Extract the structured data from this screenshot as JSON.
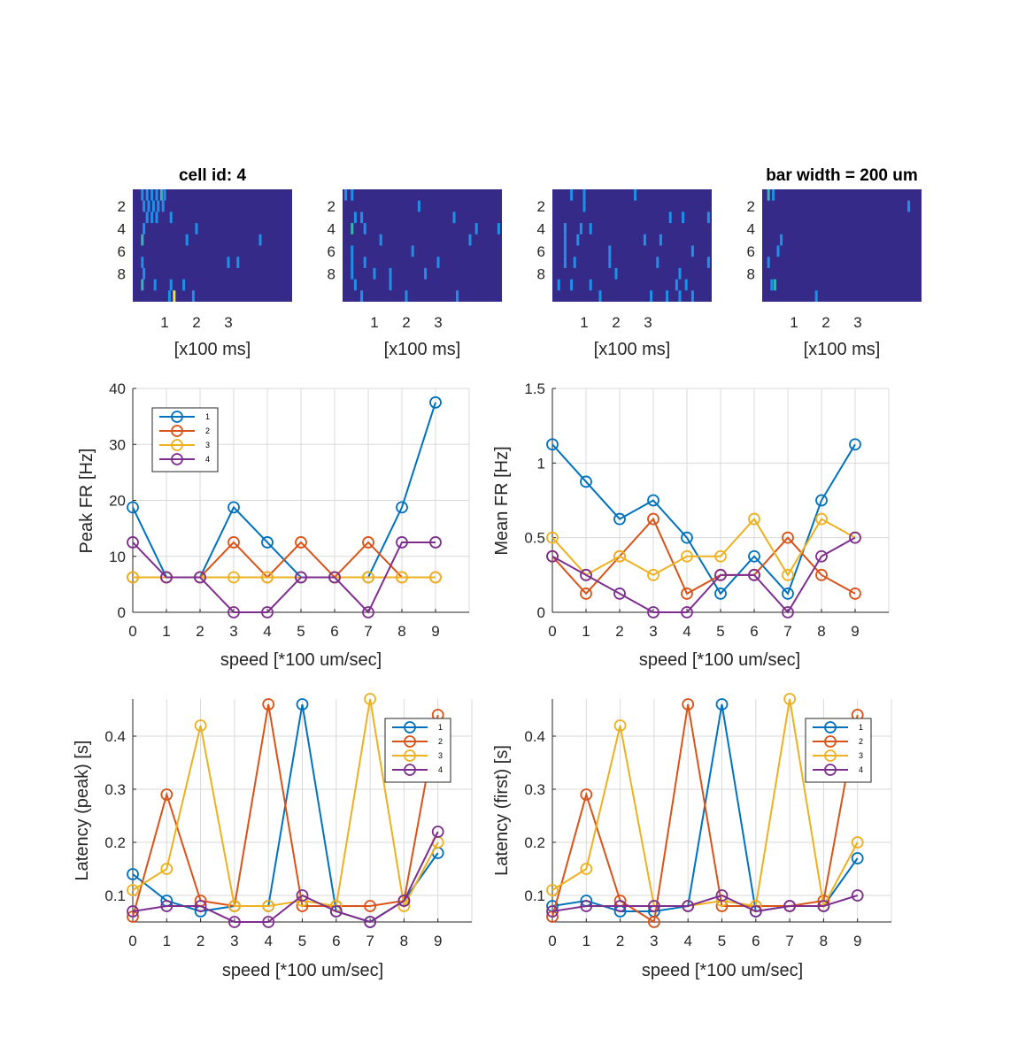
{
  "figure": {
    "raster_title": "cell id: 4",
    "raster_title_right": "bar width = 200 um"
  },
  "colors": {
    "series": [
      "#0072BD",
      "#D95319",
      "#EDB120",
      "#7E2F8E"
    ],
    "raster_background": "#352A87",
    "raster_event": "#1E90E8",
    "raster_event_strong": "#35B8B0",
    "raster_event_max": "#E6E63C",
    "axis": "#262626",
    "grid": "#d9d9d9"
  },
  "rasters": {
    "xlabel": "[x100 ms]",
    "xticks": [
      1,
      2,
      3
    ],
    "yticks": [
      2,
      4,
      6,
      8
    ],
    "xlim": [
      0,
      5
    ],
    "ylim": [
      0.5,
      10.5
    ]
  },
  "chart_data": [
    {
      "type": "heatmap",
      "panel": "raster-1",
      "title": "cell id: 4",
      "xlabel": "[x100 ms]",
      "events": [
        [
          0.3,
          1,
          1
        ],
        [
          0.45,
          1,
          1
        ],
        [
          0.6,
          1,
          1
        ],
        [
          0.75,
          1,
          1
        ],
        [
          0.9,
          1,
          2
        ],
        [
          1.0,
          1,
          1
        ],
        [
          0.35,
          2,
          1
        ],
        [
          0.5,
          2,
          1
        ],
        [
          0.65,
          2,
          1
        ],
        [
          0.8,
          2,
          1
        ],
        [
          0.95,
          2,
          1
        ],
        [
          0.45,
          3,
          1
        ],
        [
          0.6,
          3,
          1
        ],
        [
          0.75,
          3,
          1
        ],
        [
          1.2,
          3,
          1
        ],
        [
          2.0,
          4,
          1
        ],
        [
          0.35,
          4,
          1
        ],
        [
          0.3,
          5,
          2
        ],
        [
          1.7,
          5,
          1
        ],
        [
          4.0,
          5,
          1
        ],
        [
          0.3,
          7,
          1
        ],
        [
          3.0,
          7,
          1
        ],
        [
          3.3,
          7,
          1
        ],
        [
          0.35,
          8,
          1
        ],
        [
          0.3,
          9,
          2
        ],
        [
          0.7,
          9,
          1
        ],
        [
          1.2,
          9,
          1
        ],
        [
          1.6,
          9,
          1
        ],
        [
          1.15,
          10,
          1
        ],
        [
          1.3,
          10,
          3
        ],
        [
          1.9,
          10,
          1
        ]
      ]
    },
    {
      "type": "heatmap",
      "panel": "raster-2",
      "title": "",
      "xlabel": "[x100 ms]",
      "events": [
        [
          0.1,
          1,
          1
        ],
        [
          0.3,
          1,
          1
        ],
        [
          2.4,
          2,
          1
        ],
        [
          0.4,
          3,
          1
        ],
        [
          0.6,
          3,
          1
        ],
        [
          3.5,
          3,
          1
        ],
        [
          0.3,
          4,
          2
        ],
        [
          0.7,
          4,
          1
        ],
        [
          4.2,
          4,
          1
        ],
        [
          4.9,
          4,
          1
        ],
        [
          1.2,
          5,
          1
        ],
        [
          4.0,
          5,
          1
        ],
        [
          0.3,
          6,
          1
        ],
        [
          2.2,
          6,
          1
        ],
        [
          0.3,
          7,
          1
        ],
        [
          0.7,
          7,
          1
        ],
        [
          3.0,
          7,
          1
        ],
        [
          0.3,
          8,
          1
        ],
        [
          1.0,
          8,
          1
        ],
        [
          1.5,
          8,
          1
        ],
        [
          2.6,
          8,
          1
        ],
        [
          0.4,
          9,
          1
        ],
        [
          1.5,
          9,
          1
        ],
        [
          0.6,
          10,
          1
        ],
        [
          2.0,
          10,
          1
        ],
        [
          3.6,
          10,
          1
        ]
      ]
    },
    {
      "type": "heatmap",
      "panel": "raster-3",
      "title": "",
      "xlabel": "[x100 ms]",
      "events": [
        [
          0.6,
          1,
          1
        ],
        [
          1.0,
          1,
          1
        ],
        [
          2.6,
          1,
          1
        ],
        [
          1.0,
          2,
          1
        ],
        [
          3.7,
          3,
          1
        ],
        [
          4.1,
          3,
          1
        ],
        [
          4.9,
          3,
          1
        ],
        [
          0.4,
          4,
          1
        ],
        [
          0.9,
          4,
          1
        ],
        [
          1.2,
          4,
          1
        ],
        [
          0.4,
          5,
          1
        ],
        [
          0.8,
          5,
          1
        ],
        [
          2.9,
          5,
          1
        ],
        [
          3.4,
          5,
          1
        ],
        [
          0.4,
          6,
          1
        ],
        [
          1.8,
          6,
          1
        ],
        [
          4.4,
          6,
          1
        ],
        [
          0.4,
          7,
          1
        ],
        [
          0.7,
          7,
          1
        ],
        [
          1.8,
          7,
          1
        ],
        [
          3.3,
          7,
          1
        ],
        [
          4.9,
          7,
          1
        ],
        [
          2.0,
          8,
          1
        ],
        [
          4.0,
          8,
          1
        ],
        [
          0.2,
          9,
          1
        ],
        [
          0.6,
          9,
          1
        ],
        [
          1.2,
          9,
          1
        ],
        [
          3.9,
          9,
          1
        ],
        [
          4.2,
          9,
          1
        ],
        [
          1.5,
          10,
          1
        ],
        [
          3.1,
          10,
          1
        ],
        [
          3.6,
          10,
          1
        ],
        [
          4.0,
          10,
          1
        ],
        [
          4.4,
          10,
          1
        ]
      ]
    },
    {
      "type": "heatmap",
      "panel": "raster-4",
      "title": "bar width = 200 um",
      "xlabel": "[x100 ms]",
      "events": [
        [
          0.2,
          1,
          2
        ],
        [
          0.35,
          1,
          1
        ],
        [
          4.6,
          2,
          1
        ],
        [
          0.6,
          5,
          1
        ],
        [
          0.5,
          6,
          1
        ],
        [
          0.2,
          7,
          1
        ],
        [
          0.3,
          9,
          1
        ],
        [
          0.4,
          9,
          2
        ],
        [
          1.7,
          10,
          1
        ]
      ]
    },
    {
      "type": "line",
      "panel": "peak-fr",
      "xlabel": "speed [*100 um/sec]",
      "ylabel": "Peak FR [Hz]",
      "x": [
        0,
        1,
        2,
        3,
        4,
        5,
        6,
        7,
        8,
        9
      ],
      "xlim": [
        0,
        10
      ],
      "ylim": [
        0,
        40
      ],
      "yticks": [
        0,
        10,
        20,
        30,
        40
      ],
      "grid": true,
      "legend": "top-left",
      "series": [
        {
          "name": "1",
          "values": [
            18.75,
            6.25,
            6.25,
            18.75,
            12.5,
            6.25,
            6.25,
            6.25,
            18.75,
            37.5
          ]
        },
        {
          "name": "2",
          "values": [
            6.25,
            6.25,
            6.25,
            12.5,
            6.25,
            12.5,
            6.25,
            12.5,
            6.25,
            6.25
          ]
        },
        {
          "name": "3",
          "values": [
            6.25,
            6.25,
            6.25,
            6.25,
            6.25,
            6.25,
            6.25,
            6.25,
            6.25,
            6.25
          ]
        },
        {
          "name": "4",
          "values": [
            12.5,
            6.25,
            6.25,
            0,
            0,
            6.25,
            6.25,
            0,
            12.5,
            12.5
          ]
        }
      ]
    },
    {
      "type": "line",
      "panel": "mean-fr",
      "xlabel": "speed [*100 um/sec]",
      "ylabel": "Mean FR [Hz]",
      "x": [
        0,
        1,
        2,
        3,
        4,
        5,
        6,
        7,
        8,
        9
      ],
      "xlim": [
        0,
        10
      ],
      "ylim": [
        0,
        1.5
      ],
      "yticks": [
        0,
        0.5,
        1,
        1.5
      ],
      "grid": true,
      "legend": "none",
      "series": [
        {
          "name": "1",
          "values": [
            1.125,
            0.875,
            0.625,
            0.75,
            0.5,
            0.125,
            0.375,
            0.125,
            0.75,
            1.125
          ]
        },
        {
          "name": "2",
          "values": [
            0.375,
            0.125,
            0.375,
            0.625,
            0.125,
            0.25,
            0.25,
            0.5,
            0.25,
            0.125
          ]
        },
        {
          "name": "3",
          "values": [
            0.5,
            0.25,
            0.375,
            0.25,
            0.375,
            0.375,
            0.625,
            0.25,
            0.625,
            0.5
          ]
        },
        {
          "name": "4",
          "values": [
            0.375,
            0.25,
            0.125,
            0,
            0,
            0.25,
            0.25,
            0,
            0.375,
            0.5
          ]
        }
      ]
    },
    {
      "type": "line",
      "panel": "latency-peak",
      "xlabel": "speed [*100 um/sec]",
      "ylabel": "Latency (peak) [s]",
      "x": [
        0,
        1,
        2,
        3,
        4,
        5,
        6,
        7,
        8,
        9
      ],
      "xlim": [
        0,
        10
      ],
      "ylim": [
        0.05,
        0.47
      ],
      "yticks": [
        0.1,
        0.2,
        0.3,
        0.4
      ],
      "grid": true,
      "legend": "top-right",
      "series": [
        {
          "name": "1",
          "values": [
            0.14,
            0.09,
            0.07,
            0.08,
            0.08,
            0.46,
            0.07,
            0.05,
            0.09,
            0.18
          ]
        },
        {
          "name": "2",
          "values": [
            0.06,
            0.29,
            0.09,
            0.08,
            0.46,
            0.08,
            0.08,
            0.08,
            0.09,
            0.44
          ]
        },
        {
          "name": "3",
          "values": [
            0.11,
            0.15,
            0.42,
            0.08,
            0.08,
            0.09,
            0.08,
            0.47,
            0.08,
            0.2
          ]
        },
        {
          "name": "4",
          "values": [
            0.07,
            0.08,
            0.08,
            0.05,
            0.05,
            0.1,
            0.07,
            0.05,
            0.09,
            0.22
          ]
        }
      ]
    },
    {
      "type": "line",
      "panel": "latency-first",
      "xlabel": "speed [*100 um/sec]",
      "ylabel": "Latency (first) [s]",
      "x": [
        0,
        1,
        2,
        3,
        4,
        5,
        6,
        7,
        8,
        9
      ],
      "xlim": [
        0,
        10
      ],
      "ylim": [
        0.05,
        0.47
      ],
      "yticks": [
        0.1,
        0.2,
        0.3,
        0.4
      ],
      "grid": true,
      "legend": "top-right",
      "series": [
        {
          "name": "1",
          "values": [
            0.08,
            0.09,
            0.07,
            0.07,
            0.08,
            0.46,
            0.07,
            0.08,
            0.08,
            0.17
          ]
        },
        {
          "name": "2",
          "values": [
            0.06,
            0.29,
            0.09,
            0.05,
            0.46,
            0.08,
            0.08,
            0.08,
            0.09,
            0.44
          ]
        },
        {
          "name": "3",
          "values": [
            0.11,
            0.15,
            0.42,
            0.08,
            0.08,
            0.09,
            0.08,
            0.47,
            0.08,
            0.2
          ]
        },
        {
          "name": "4",
          "values": [
            0.07,
            0.08,
            0.08,
            0.08,
            0.08,
            0.1,
            0.07,
            0.08,
            0.08,
            0.1
          ]
        }
      ]
    }
  ]
}
